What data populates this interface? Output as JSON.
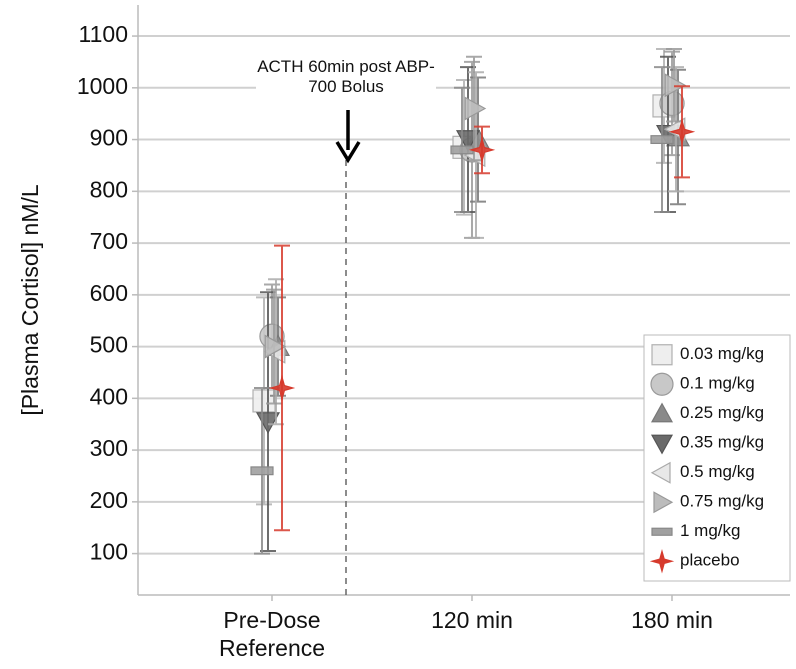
{
  "chart_data": {
    "type": "errorbar",
    "y_label": "[Plasma Cortisol] nM/L",
    "annotation": "ACTH 60min post ABP-700 Bolus",
    "categories": [
      "Pre-Dose Reference",
      "120 min",
      "180 min"
    ],
    "ylim": [
      20,
      1160
    ],
    "yticks": [
      100,
      200,
      300,
      400,
      500,
      600,
      700,
      800,
      900,
      1000,
      1100
    ],
    "grid": true,
    "legend": "lower right",
    "series": [
      {
        "name": "0.03 mg/kg",
        "marker": "square",
        "color": "#eeeeee",
        "edgecolor": "#b0b0b0",
        "values": [
          395,
          885,
          965
        ],
        "errors": [
          200,
          130,
          110
        ]
      },
      {
        "name": "0.1 mg/kg",
        "marker": "circle",
        "color": "#c8c8c8",
        "edgecolor": "#9a9a9a",
        "values": [
          520,
          880,
          970
        ],
        "errors": [
          100,
          170,
          100
        ]
      },
      {
        "name": "0.25 mg/kg",
        "marker": "triangle-up",
        "color": "#8a8a8a",
        "edgecolor": "#777777",
        "values": [
          500,
          900,
          905
        ],
        "errors": [
          95,
          120,
          130
        ]
      },
      {
        "name": "0.35 mg/kg",
        "marker": "triangle-down",
        "color": "#6a6a6a",
        "edgecolor": "#555555",
        "values": [
          355,
          900,
          910
        ],
        "errors": [
          250,
          140,
          150
        ]
      },
      {
        "name": "0.5 mg/kg",
        "marker": "triangle-left",
        "color": "#e8e8e8",
        "edgecolor": "#aaaaaa",
        "values": [
          490,
          870,
          920
        ],
        "errors": [
          140,
          160,
          120
        ]
      },
      {
        "name": "0.75 mg/kg",
        "marker": "triangle-right",
        "color": "#bcbcbc",
        "edgecolor": "#999999",
        "values": [
          500,
          960,
          1005
        ],
        "errors": [
          110,
          100,
          70
        ]
      },
      {
        "name": "1 mg/kg",
        "marker": "bar",
        "color": "#a0a0a0",
        "edgecolor": "#888888",
        "values": [
          260,
          880,
          900
        ],
        "errors": [
          160,
          120,
          140
        ]
      },
      {
        "name": "placebo",
        "marker": "star",
        "color": "#d63a2c",
        "edgecolor": "#d63a2c",
        "values": [
          420,
          880,
          915
        ],
        "errors": [
          275,
          45,
          88
        ]
      }
    ]
  }
}
